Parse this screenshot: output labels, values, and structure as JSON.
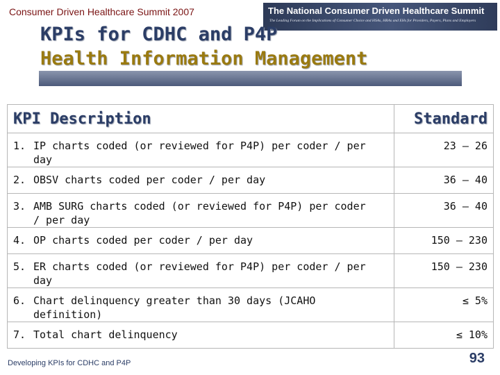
{
  "header": {
    "summit_label": "Consumer Driven Healthcare Summit 2007",
    "banner_title": "The National Consumer Driven Healthcare Summit",
    "banner_subtitle": "The Leading Forum on the Implications of Consumer Choice and HSAs, HRAs and EHs for Providers, Payers, Plans and Employers"
  },
  "slide": {
    "title_line1": "KPIs for CDHC and P4P",
    "title_line2": "Health Information Management"
  },
  "table": {
    "headers": {
      "description": "KPI Description",
      "standard": "Standard"
    },
    "rows": [
      {
        "num": "1.",
        "description": "IP charts coded (or reviewed for P4P) per coder / per day",
        "standard": "23 – 26"
      },
      {
        "num": "2.",
        "description": "OBSV charts coded per coder / per day",
        "standard": "36 – 40"
      },
      {
        "num": "3.",
        "description": "AMB SURG charts coded (or reviewed for P4P) per coder / per day",
        "standard": "36 – 40"
      },
      {
        "num": "4.",
        "description": "OP charts coded per coder / per day",
        "standard": "150 – 230"
      },
      {
        "num": "5.",
        "description": "ER charts coded (or reviewed for P4P) per coder / per day",
        "standard": "150 – 230"
      },
      {
        "num": "6.",
        "description": "Chart delinquency greater than 30 days (JCAHO definition)",
        "standard": "≤ 5%"
      },
      {
        "num": "7.",
        "description": "Total chart delinquency",
        "standard": "≤ 10%"
      }
    ]
  },
  "footer": {
    "text": "Developing KPIs for CDHC and P4P",
    "page_number": "93"
  },
  "colors": {
    "title_primary": "#2b3d66",
    "title_secondary": "#9a7a10",
    "summit_label": "#7a1414",
    "banner_bg": "#3a486a"
  }
}
